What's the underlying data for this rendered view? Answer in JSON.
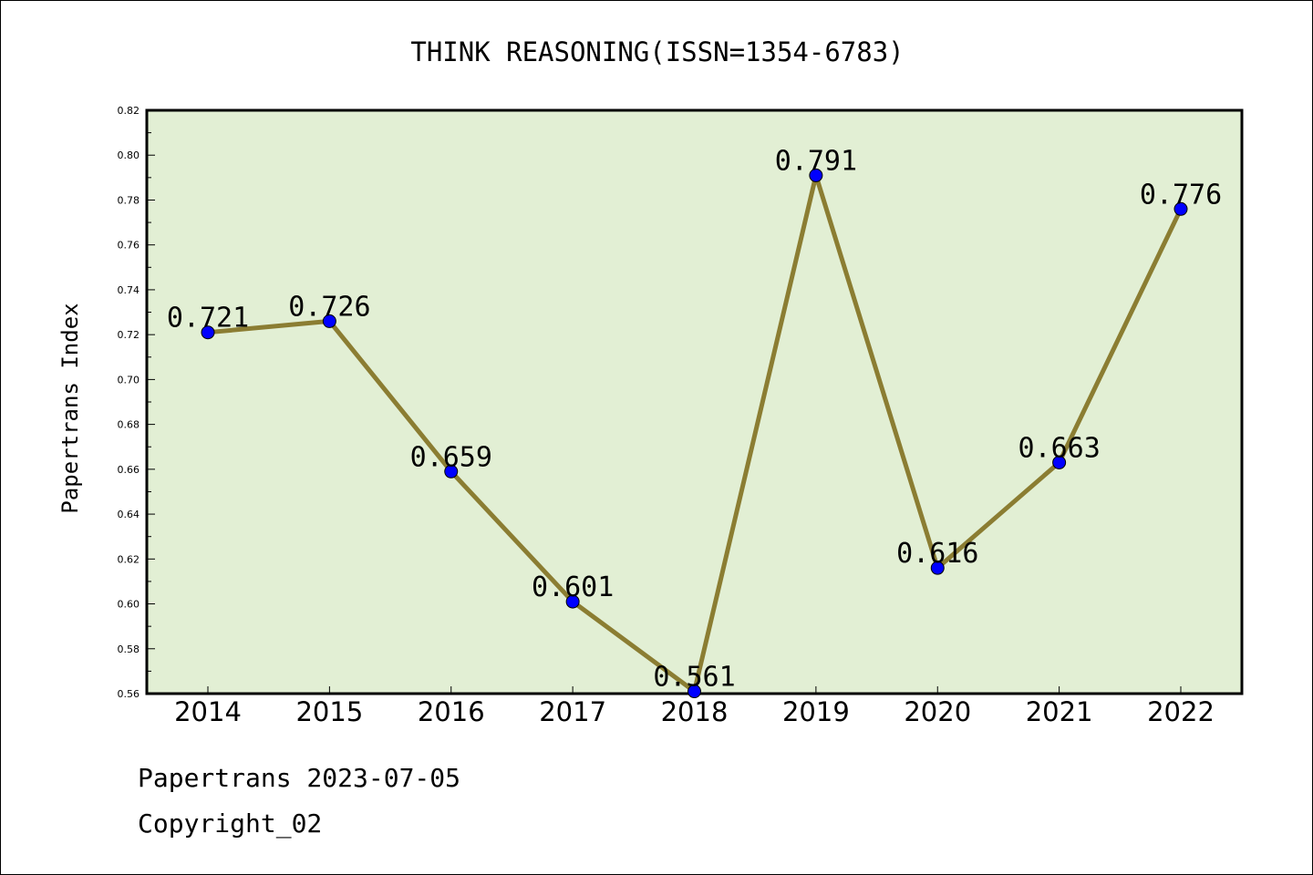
{
  "chart_data": {
    "type": "line",
    "title": "THINK REASONING(ISSN=1354-6783)",
    "xlabel": "",
    "ylabel": "Papertrans Index",
    "categories": [
      "2014",
      "2015",
      "2016",
      "2017",
      "2018",
      "2019",
      "2020",
      "2021",
      "2022"
    ],
    "series": [
      {
        "values": [
          0.721,
          0.726,
          0.659,
          0.601,
          0.561,
          0.791,
          0.616,
          0.663,
          0.776
        ],
        "data_labels": [
          "0.721",
          "0.726",
          "0.659",
          "0.601",
          "0.561",
          "0.791",
          "0.616",
          "0.663",
          "0.776"
        ]
      }
    ],
    "ylim": [
      0.56,
      0.82
    ],
    "yticks": [
      "0.56",
      "0.58",
      "0.60",
      "0.62",
      "0.64",
      "0.66",
      "0.68",
      "0.70",
      "0.72",
      "0.74",
      "0.76",
      "0.78",
      "0.80",
      "0.82"
    ],
    "grid": false,
    "legend": "none",
    "colors": {
      "plot_background": "#e2efd4",
      "line": "#8b7d32",
      "marker": "#0000ff",
      "axes": "#000000"
    }
  },
  "footer": {
    "line1": "Papertrans 2023-07-05",
    "line2": "Copyright_02"
  }
}
